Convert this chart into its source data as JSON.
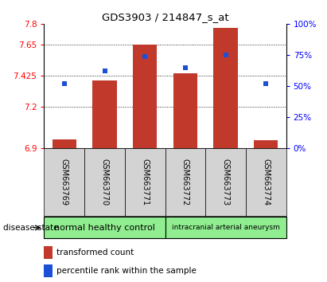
{
  "title": "GDS3903 / 214847_s_at",
  "samples": [
    "GSM663769",
    "GSM663770",
    "GSM663771",
    "GSM663772",
    "GSM663773",
    "GSM663774"
  ],
  "bar_values": [
    6.96,
    7.39,
    7.65,
    7.44,
    7.77,
    6.955
  ],
  "percentile_values": [
    52,
    62,
    74,
    65,
    75,
    52
  ],
  "y_min": 6.9,
  "y_max": 7.8,
  "y_ticks_left": [
    6.9,
    7.2,
    7.425,
    7.65,
    7.8
  ],
  "y_ticks_right": [
    0,
    25,
    50,
    75,
    100
  ],
  "bar_color": "#c0392b",
  "percentile_color": "#1a4fd6",
  "group1_label": "normal healthy control",
  "group2_label": "intracranial arterial aneurysm",
  "group1_indices": [
    0,
    1,
    2
  ],
  "group2_indices": [
    3,
    4,
    5
  ],
  "group_bg_color": "#90ee90",
  "sample_bg_color": "#d3d3d3",
  "legend_tc": "transformed count",
  "legend_pr": "percentile rank within the sample",
  "disease_state_label": "disease state"
}
